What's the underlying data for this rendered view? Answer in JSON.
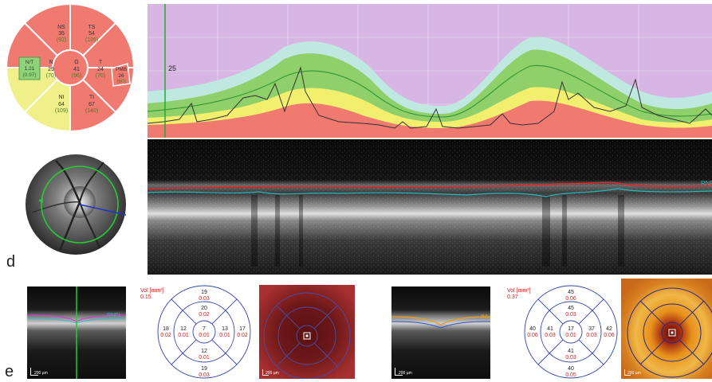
{
  "panel_labels": {
    "d": "d",
    "e": "e"
  },
  "sector_chart": {
    "NS": {
      "label": "NS",
      "value": "35",
      "normal": "(92)"
    },
    "TS": {
      "label": "TS",
      "value": "54",
      "normal": "(126)"
    },
    "N": {
      "label": "N",
      "value": "29",
      "normal": "(70)"
    },
    "G": {
      "label": "G",
      "value": "41",
      "normal": "(96)"
    },
    "T": {
      "label": "T",
      "value": "24",
      "normal": "(70)"
    },
    "NI": {
      "label": "NI",
      "value": "64",
      "normal": "(109)"
    },
    "TI": {
      "label": "TI",
      "value": "67",
      "normal": "(140)"
    },
    "NT": {
      "label": "N/T",
      "value": "1.21",
      "normal": "(0.97)"
    },
    "PMB": {
      "label": "PMB",
      "value": "26",
      "normal": "(60)"
    },
    "colors": {
      "red": "#f07a70",
      "yellow": "#f0f08a",
      "green": "#8ed27a"
    }
  },
  "profile": {
    "marker_label": "25",
    "colors": {
      "background": "#d8b6e4",
      "cyan": "#bfe8e0",
      "green": "#8fd06a",
      "yellow": "#f2ef6e",
      "red": "#f07a70"
    }
  },
  "bscan": {
    "layer_label": "RNFL"
  },
  "macula_left": {
    "scale": "200 µm",
    "layer_label": "RNFL",
    "vol_label": "Vol [mm³]",
    "vol_value": "0.15",
    "grid": {
      "outer_top": {
        "t": "19",
        "v": "0.03"
      },
      "inner_top": {
        "t": "20",
        "v": "0.02"
      },
      "outer_left": {
        "t": "18",
        "v": "0.02"
      },
      "inner_left": {
        "t": "12",
        "v": "0.01"
      },
      "center": {
        "t": "7",
        "v": "0.01"
      },
      "inner_right": {
        "t": "13",
        "v": "0.01"
      },
      "outer_right": {
        "t": "17",
        "v": "0.02"
      },
      "inner_bottom": {
        "t": "12",
        "v": "0.01"
      },
      "outer_bottom": {
        "t": "19",
        "v": "0.03"
      }
    },
    "map_scale": "200 µm"
  },
  "macula_right": {
    "scale": "200 µm",
    "layer_label": "INL",
    "vol_label": "Vol [mm³]",
    "vol_value": "0.37",
    "grid": {
      "outer_top": {
        "t": "45",
        "v": "0.06"
      },
      "inner_top": {
        "t": "45",
        "v": "0.03"
      },
      "outer_left": {
        "t": "40",
        "v": "0.06"
      },
      "inner_left": {
        "t": "41",
        "v": "0.03"
      },
      "center": {
        "t": "17",
        "v": "0.01"
      },
      "inner_right": {
        "t": "37",
        "v": "0.03"
      },
      "outer_right": {
        "t": "42",
        "v": "0.06"
      },
      "inner_bottom": {
        "t": "41",
        "v": "0.03"
      },
      "outer_bottom": {
        "t": "40",
        "v": "0.05"
      }
    },
    "map_scale": "200 µm"
  }
}
